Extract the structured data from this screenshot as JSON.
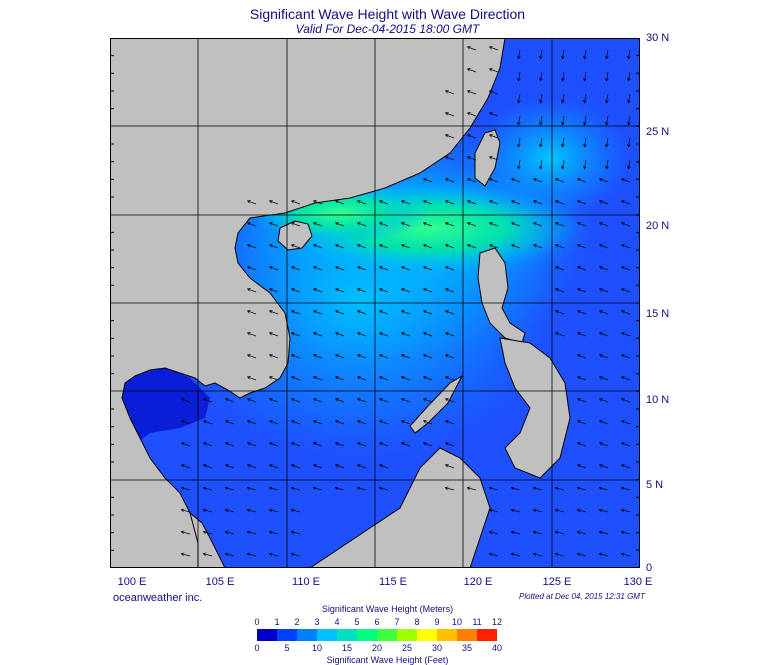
{
  "header": {
    "title": "Significant Wave Height with Wave Direction",
    "subtitle": "Valid For Dec-04-2015 18:00 GMT"
  },
  "map": {
    "lon_range": [
      100,
      130
    ],
    "lat_range": [
      0,
      30
    ],
    "lon_labels": [
      "100 E",
      "105 E",
      "110 E",
      "115 E",
      "120 E",
      "125 E",
      "130 E"
    ],
    "lat_labels": [
      "30 N",
      "25 N",
      "20 N",
      "15 N",
      "10 N",
      "5 N",
      "0"
    ],
    "land_color": "#c0c0c0",
    "wave_direction": "arrows pointing west-southwest over the South China Sea",
    "max_wave_region": "Luzon Strait and northern South China Sea, about 3.5 m"
  },
  "footer": {
    "credit": "oceanweather inc.",
    "plotted": "Plotted at Dec 04, 2015 12:31 GMT"
  },
  "colorbar": {
    "title_meters": "Significant Wave Height (Meters)",
    "title_feet": "Significant Wave Height (Feet)",
    "meters_ticks": [
      "0",
      "1",
      "2",
      "3",
      "4",
      "5",
      "6",
      "7",
      "8",
      "9",
      "10",
      "11",
      "12"
    ],
    "feet_ticks": [
      "0",
      "5",
      "10",
      "15",
      "20",
      "25",
      "30",
      "35",
      "40"
    ],
    "colors": [
      "#0000c8",
      "#0040ff",
      "#0080ff",
      "#00c0ff",
      "#00e0c0",
      "#00ff80",
      "#40ff40",
      "#a0ff00",
      "#ffff00",
      "#ffc000",
      "#ff8000",
      "#ff2000"
    ]
  }
}
